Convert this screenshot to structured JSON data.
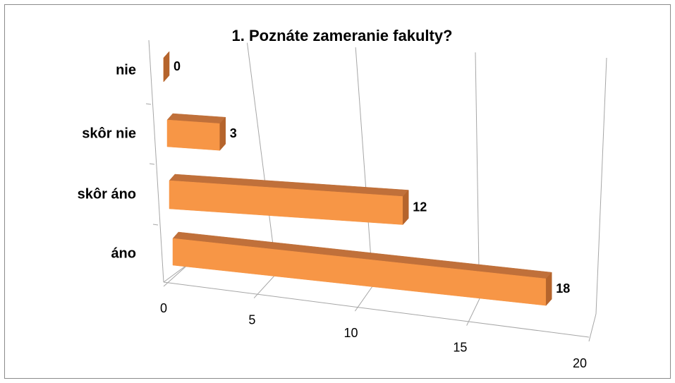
{
  "chart_data": {
    "type": "bar3d",
    "orientation": "horizontal",
    "title": "1. Poznáte zameranie fakulty?",
    "categories": [
      "nie",
      "skôr nie",
      "skôr áno",
      "áno"
    ],
    "values": [
      0,
      3,
      12,
      18
    ],
    "color": "#f79646",
    "xlim": [
      0,
      20
    ],
    "xticks": [
      0,
      5,
      10,
      15,
      20
    ],
    "grid": true
  }
}
